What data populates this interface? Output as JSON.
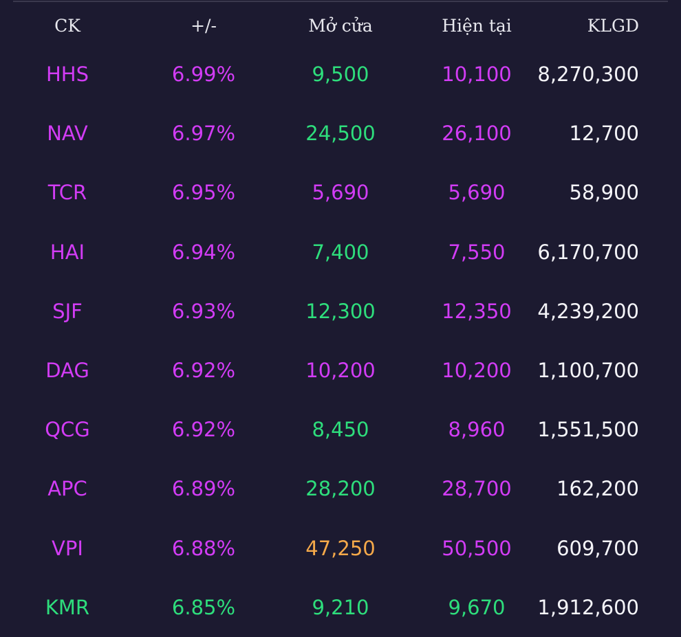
{
  "colors": {
    "background": "#1c1a30",
    "ceiling": "#d23cf5",
    "up": "#2ede7c",
    "reference": "#f5a94a",
    "neutral": "#f4f4f8"
  },
  "table": {
    "headers": {
      "ck": "CK",
      "change": "+/-",
      "open": "Mở cửa",
      "current": "Hiện tại",
      "volume": "KLGD"
    },
    "rows": [
      {
        "ck": "HHS",
        "change": "6.99%",
        "open": "9,500",
        "current": "10,100",
        "volume": "8,270,300",
        "ck_color": "#d23cf5",
        "change_color": "#d23cf5",
        "open_color": "#2ede7c",
        "current_color": "#d23cf5"
      },
      {
        "ck": "NAV",
        "change": "6.97%",
        "open": "24,500",
        "current": "26,100",
        "volume": "12,700",
        "ck_color": "#d23cf5",
        "change_color": "#d23cf5",
        "open_color": "#2ede7c",
        "current_color": "#d23cf5"
      },
      {
        "ck": "TCR",
        "change": "6.95%",
        "open": "5,690",
        "current": "5,690",
        "volume": "58,900",
        "ck_color": "#d23cf5",
        "change_color": "#d23cf5",
        "open_color": "#d23cf5",
        "current_color": "#d23cf5"
      },
      {
        "ck": "HAI",
        "change": "6.94%",
        "open": "7,400",
        "current": "7,550",
        "volume": "6,170,700",
        "ck_color": "#d23cf5",
        "change_color": "#d23cf5",
        "open_color": "#2ede7c",
        "current_color": "#d23cf5"
      },
      {
        "ck": "SJF",
        "change": "6.93%",
        "open": "12,300",
        "current": "12,350",
        "volume": "4,239,200",
        "ck_color": "#d23cf5",
        "change_color": "#d23cf5",
        "open_color": "#2ede7c",
        "current_color": "#d23cf5"
      },
      {
        "ck": "DAG",
        "change": "6.92%",
        "open": "10,200",
        "current": "10,200",
        "volume": "1,100,700",
        "ck_color": "#d23cf5",
        "change_color": "#d23cf5",
        "open_color": "#d23cf5",
        "current_color": "#d23cf5"
      },
      {
        "ck": "QCG",
        "change": "6.92%",
        "open": "8,450",
        "current": "8,960",
        "volume": "1,551,500",
        "ck_color": "#d23cf5",
        "change_color": "#d23cf5",
        "open_color": "#2ede7c",
        "current_color": "#d23cf5"
      },
      {
        "ck": "APC",
        "change": "6.89%",
        "open": "28,200",
        "current": "28,700",
        "volume": "162,200",
        "ck_color": "#d23cf5",
        "change_color": "#d23cf5",
        "open_color": "#2ede7c",
        "current_color": "#d23cf5"
      },
      {
        "ck": "VPI",
        "change": "6.88%",
        "open": "47,250",
        "current": "50,500",
        "volume": "609,700",
        "ck_color": "#d23cf5",
        "change_color": "#d23cf5",
        "open_color": "#f5a94a",
        "current_color": "#d23cf5"
      },
      {
        "ck": "KMR",
        "change": "6.85%",
        "open": "9,210",
        "current": "9,670",
        "volume": "1,912,600",
        "ck_color": "#2ede7c",
        "change_color": "#2ede7c",
        "open_color": "#2ede7c",
        "current_color": "#2ede7c"
      }
    ]
  }
}
